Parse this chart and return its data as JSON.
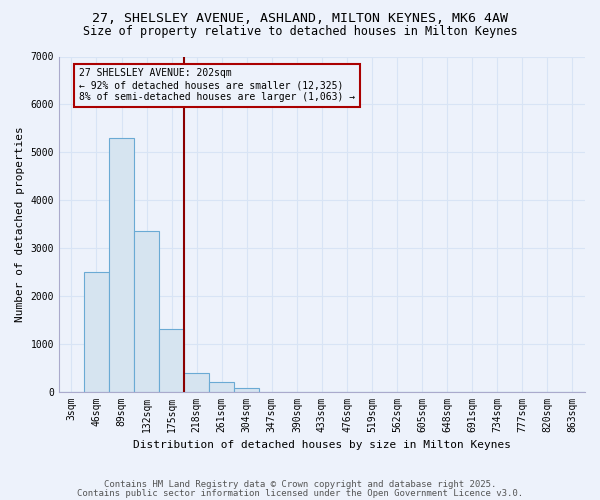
{
  "title_line1": "27, SHELSLEY AVENUE, ASHLAND, MILTON KEYNES, MK6 4AW",
  "title_line2": "Size of property relative to detached houses in Milton Keynes",
  "xlabel": "Distribution of detached houses by size in Milton Keynes",
  "ylabel": "Number of detached properties",
  "categories": [
    "3sqm",
    "46sqm",
    "89sqm",
    "132sqm",
    "175sqm",
    "218sqm",
    "261sqm",
    "304sqm",
    "347sqm",
    "390sqm",
    "433sqm",
    "476sqm",
    "519sqm",
    "562sqm",
    "605sqm",
    "648sqm",
    "691sqm",
    "734sqm",
    "777sqm",
    "820sqm",
    "863sqm"
  ],
  "values": [
    0,
    2500,
    5300,
    3350,
    1300,
    380,
    190,
    80,
    0,
    0,
    0,
    0,
    0,
    0,
    0,
    0,
    0,
    0,
    0,
    0,
    0
  ],
  "bar_color": "#d6e4f0",
  "bar_edge_color": "#6aaad4",
  "vline_color": "#8b0000",
  "annotation_text": "27 SHELSLEY AVENUE: 202sqm\n← 92% of detached houses are smaller (12,325)\n8% of semi-detached houses are larger (1,063) →",
  "annotation_box_color": "#aa0000",
  "annotation_text_color": "black",
  "ylim": [
    0,
    7000
  ],
  "yticks": [
    0,
    1000,
    2000,
    3000,
    4000,
    5000,
    6000,
    7000
  ],
  "footnote1": "Contains HM Land Registry data © Crown copyright and database right 2025.",
  "footnote2": "Contains public sector information licensed under the Open Government Licence v3.0.",
  "bg_color": "#edf2fb",
  "grid_color": "#d8e4f5",
  "title_fontsize": 9.5,
  "subtitle_fontsize": 8.5,
  "label_fontsize": 8,
  "tick_fontsize": 7,
  "footnote_fontsize": 6.5
}
